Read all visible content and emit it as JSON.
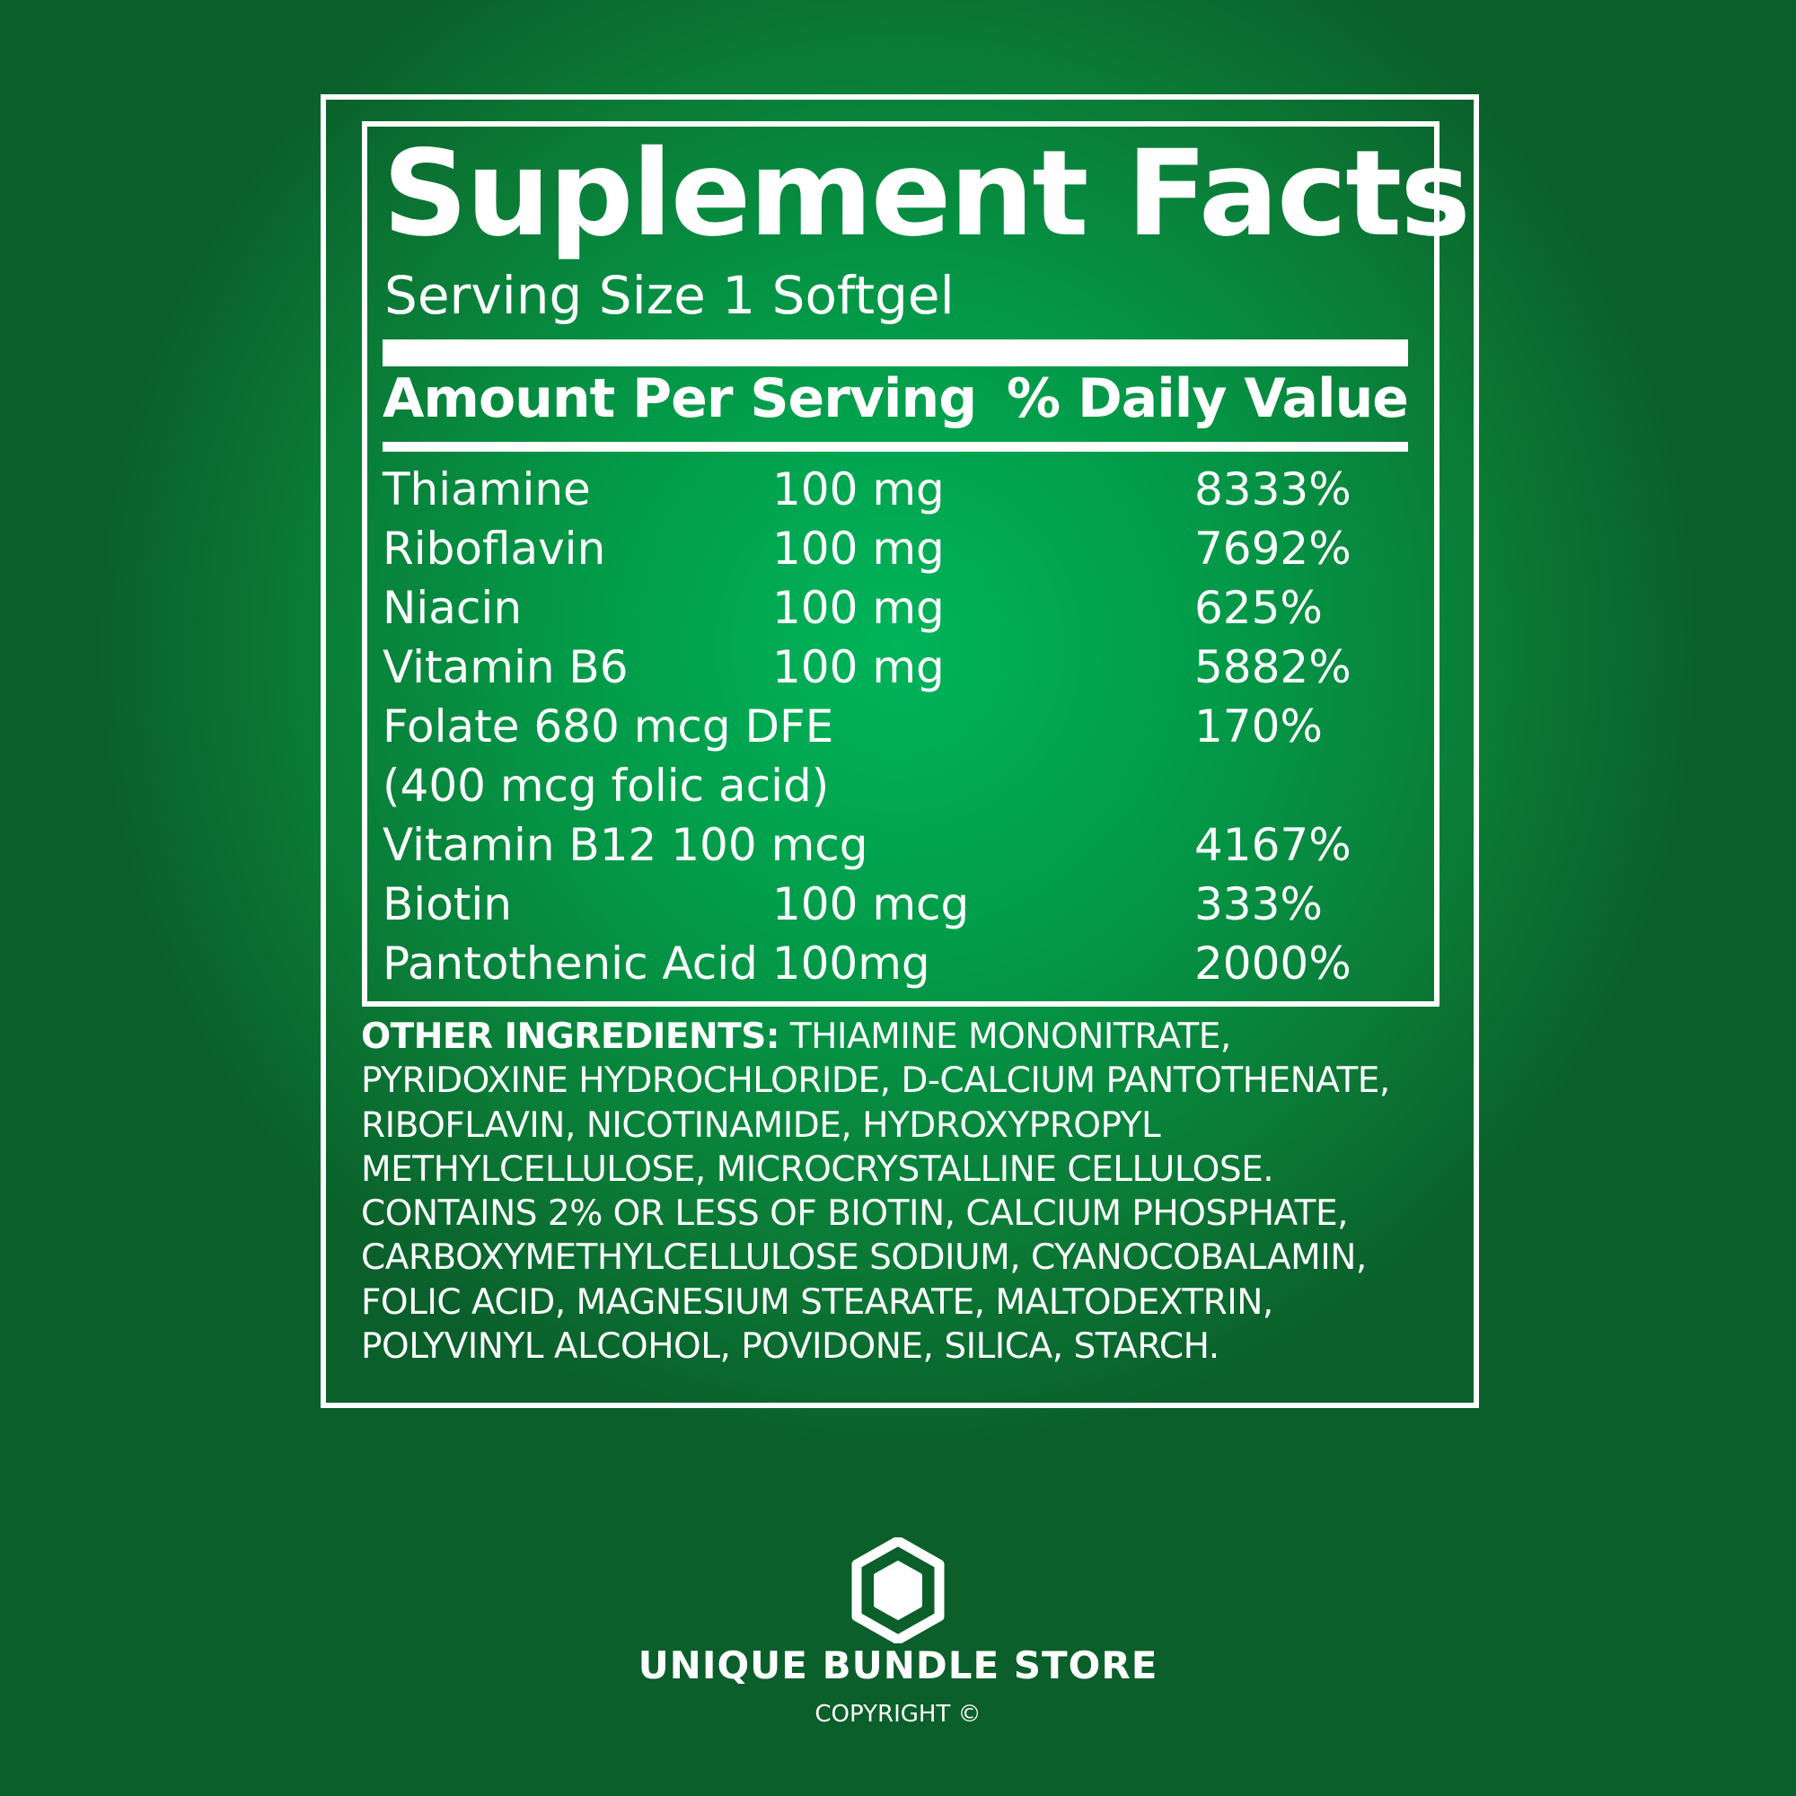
{
  "title": "Suplement Facts",
  "serving_size": "Serving Size 1 Softgel",
  "header": {
    "amount": "Amount Per Serving",
    "daily_value": "% Daily Value"
  },
  "rows": [
    {
      "name": "Thiamine",
      "amount": "100 mg",
      "dv": "8333%"
    },
    {
      "name": "Riboflavin",
      "amount": "100 mg",
      "dv": "7692%"
    },
    {
      "name": "Niacin",
      "amount": "100 mg",
      "dv": "625%"
    },
    {
      "name": "Vitamin B6",
      "amount": "100 mg",
      "dv": "5882%"
    },
    {
      "name": "Folate 680 mcg DFE",
      "amount": "",
      "dv": "170%"
    },
    {
      "name": "(400 mcg folic acid)",
      "amount": "",
      "dv": ""
    },
    {
      "name": "Vitamin B12 100 mcg",
      "amount": "",
      "dv": "4167%"
    },
    {
      "name": "Biotin",
      "amount": "100 mcg",
      "dv": "333%"
    },
    {
      "name": "Pantothenic Acid 100mg",
      "amount": "",
      "dv": "2000%"
    }
  ],
  "other_ingredients": {
    "label": "OTHER INGREDIENTS:",
    "text": " THIAMINE MONONITRATE, PYRIDOXINE HYDROCHLORIDE, D-CALCIUM PANTOTHENATE, RIBOFLAVIN, NICOTINAMIDE, HYDROXYPROPYL METHYLCELLULOSE, MICROCRYSTALLINE CELLULOSE. CONTAINS 2% OR LESS OF BIOTIN, CALCIUM PHOSPHATE, CARBOXYMETHYLCELLULOSE SODIUM, CYANOCOBALAMIN, FOLIC ACID, MAGNESIUM STEARATE, MALTODEXTRIN, POLYVINYL ALCOHOL, POVIDONE, SILICA, STARCH."
  },
  "brand": {
    "name": "UNIQUE BUNDLE STORE",
    "copyright": "COPYRIGHT ©",
    "logo_icon": "hexagon-logo-icon"
  },
  "colors": {
    "background_center": "#00b45a",
    "background_edge": "#0a5f2a",
    "foreground": "#ffffff"
  }
}
